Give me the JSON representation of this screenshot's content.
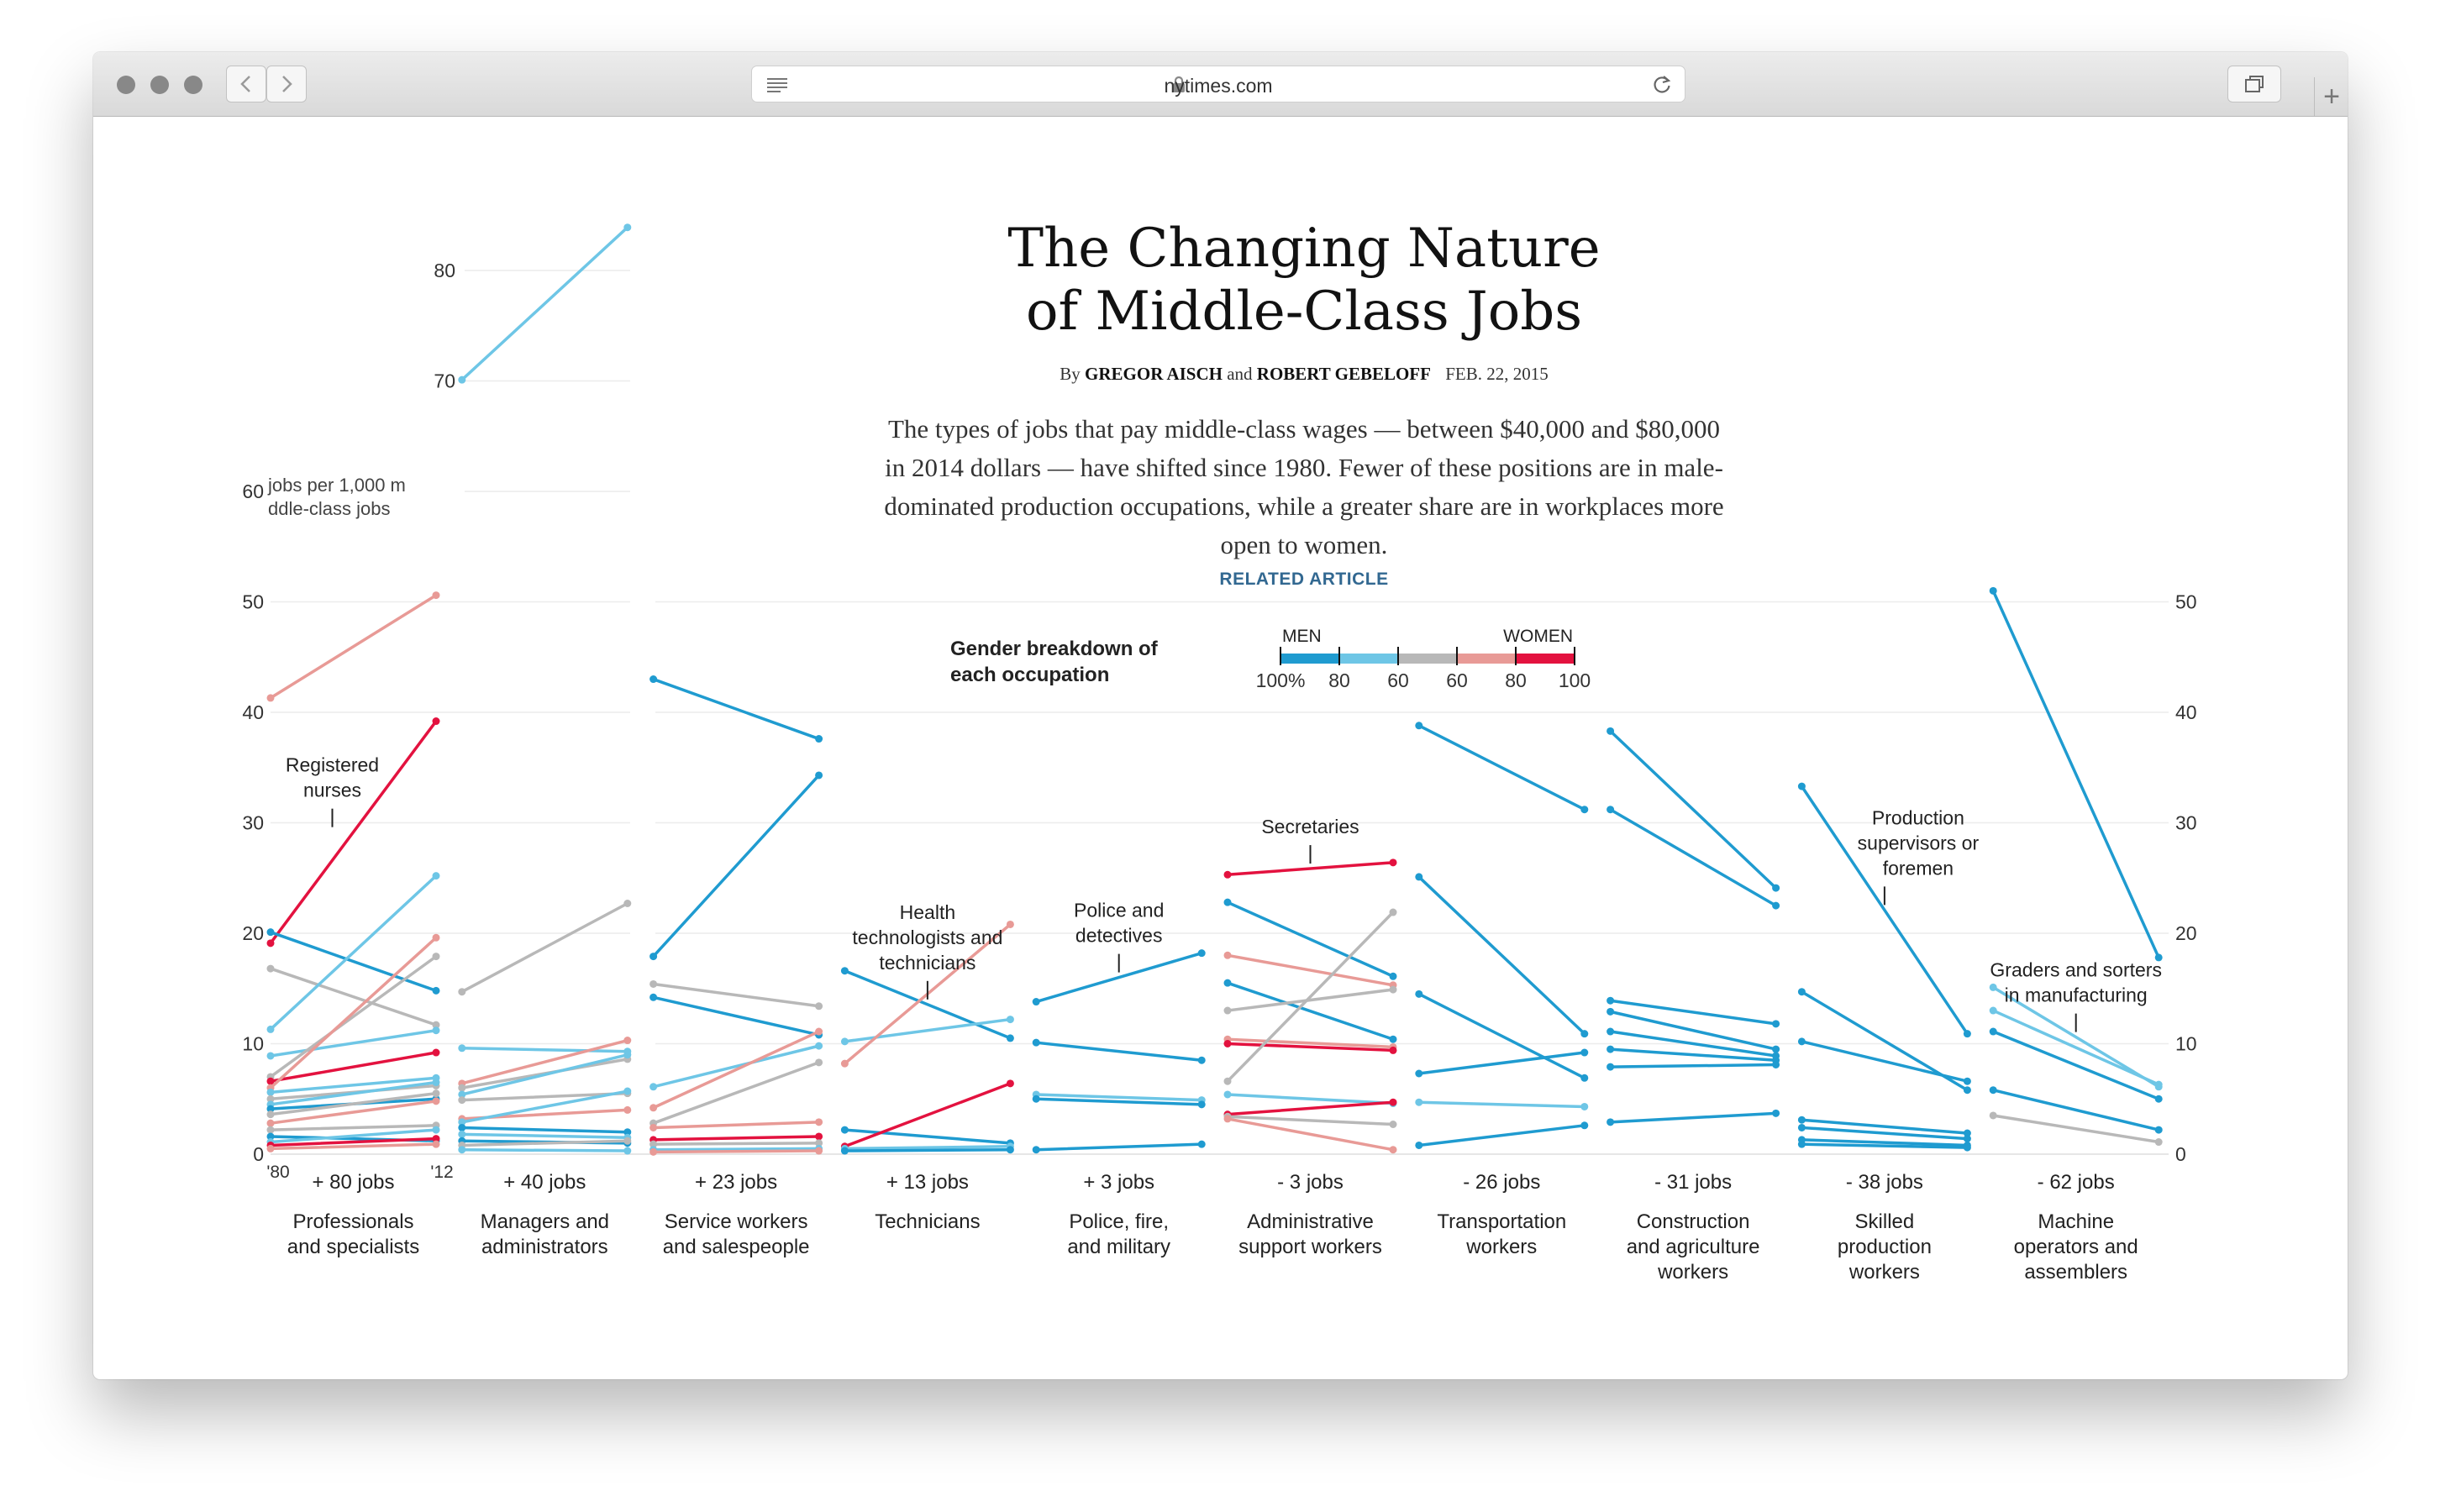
{
  "browser": {
    "url": "nytimes.com",
    "icons": [
      "close-dot-icon",
      "minimize-dot-icon",
      "zoom-dot-icon",
      "back-arrow-icon",
      "forward-arrow-icon",
      "reader-icon",
      "lock-icon",
      "reload-icon",
      "tabs-icon",
      "plus-icon"
    ]
  },
  "article": {
    "title_line1": "The Changing Nature",
    "title_line2": "of Middle-Class Jobs",
    "by": "By",
    "author1": "GREGOR AISCH",
    "and": "and",
    "author2": "ROBERT GEBELOFF",
    "date": "FEB. 22, 2015",
    "summary": "The types of jobs that pay middle-class wages — between $40,000 and $80,000 in 2014 dollars — have shifted since 1980. Fewer of these positions are in male-dominated production occupations, while a greater share are in workplaces more open to women.",
    "related": "RELATED ARTICLE"
  },
  "legend": {
    "title": "Gender breakdown of each occupation",
    "men_label": "MEN",
    "women_label": "WOMEN",
    "ticks": [
      "100%",
      "80",
      "60",
      "60",
      "80",
      "100"
    ],
    "colors": [
      "#1f9bd0",
      "#6ec6e6",
      "#b8b8b8",
      "#e89a96",
      "#e3123f"
    ]
  },
  "chart_data": {
    "type": "line",
    "x": [
      "'80",
      "'12"
    ],
    "y_unit_label": "jobs per 1,000 middle-class jobs",
    "left_ticks": [
      0,
      10,
      20,
      30,
      40,
      50,
      60,
      70,
      80
    ],
    "right_ticks": [
      0,
      10,
      20,
      30,
      40,
      50
    ],
    "ylim": [
      0,
      85
    ],
    "grid": true,
    "colors": {
      "men_high": "#1f9bd0",
      "men_mid": "#6ec6e6",
      "mixed": "#b8b8b8",
      "women_mid": "#e89a96",
      "women_high": "#e3123f"
    },
    "groups": [
      {
        "change": "+ 80 jobs",
        "label": [
          "Professionals",
          "and specialists"
        ],
        "lines": [
          {
            "v": [
              41.3,
              50.6
            ],
            "c": "women_mid"
          },
          {
            "v": [
              19.1,
              39.2
            ],
            "c": "women_high",
            "note": [
              "Registered",
              "nurses"
            ]
          },
          {
            "v": [
              20.1,
              14.8
            ],
            "c": "men_high"
          },
          {
            "v": [
              16.8,
              11.7
            ],
            "c": "mixed"
          },
          {
            "v": [
              11.3,
              25.2
            ],
            "c": "men_mid"
          },
          {
            "v": [
              8.9,
              11.2
            ],
            "c": "men_mid"
          },
          {
            "v": [
              7.0,
              17.9
            ],
            "c": "mixed"
          },
          {
            "v": [
              6.6,
              9.2
            ],
            "c": "women_high"
          },
          {
            "v": [
              6.0,
              19.6
            ],
            "c": "women_mid"
          },
          {
            "v": [
              5.6,
              6.9
            ],
            "c": "men_mid"
          },
          {
            "v": [
              5.0,
              6.2
            ],
            "c": "mixed"
          },
          {
            "v": [
              4.5,
              6.5
            ],
            "c": "men_mid"
          },
          {
            "v": [
              4.1,
              5.0
            ],
            "c": "men_high"
          },
          {
            "v": [
              3.6,
              5.5
            ],
            "c": "mixed"
          },
          {
            "v": [
              2.8,
              4.8
            ],
            "c": "women_mid"
          },
          {
            "v": [
              2.2,
              2.6
            ],
            "c": "mixed"
          },
          {
            "v": [
              1.6,
              1.2
            ],
            "c": "men_high"
          },
          {
            "v": [
              1.1,
              2.2
            ],
            "c": "men_mid"
          },
          {
            "v": [
              0.8,
              1.4
            ],
            "c": "women_high"
          },
          {
            "v": [
              0.5,
              0.9
            ],
            "c": "women_mid"
          }
        ]
      },
      {
        "change": "+ 40 jobs",
        "label": [
          "Managers and",
          "administrators"
        ],
        "lines": [
          {
            "v": [
              70.1,
              83.9
            ],
            "c": "men_mid"
          },
          {
            "v": [
              14.7,
              22.7
            ],
            "c": "mixed"
          },
          {
            "v": [
              9.6,
              9.3
            ],
            "c": "men_mid"
          },
          {
            "v": [
              6.4,
              10.3
            ],
            "c": "women_mid"
          },
          {
            "v": [
              6.0,
              8.6
            ],
            "c": "mixed"
          },
          {
            "v": [
              5.4,
              9.0
            ],
            "c": "men_mid"
          },
          {
            "v": [
              4.9,
              5.5
            ],
            "c": "mixed"
          },
          {
            "v": [
              3.2,
              4.0
            ],
            "c": "women_mid"
          },
          {
            "v": [
              2.9,
              5.7
            ],
            "c": "men_mid"
          },
          {
            "v": [
              2.4,
              2.0
            ],
            "c": "men_high"
          },
          {
            "v": [
              1.8,
              1.5
            ],
            "c": "men_mid"
          },
          {
            "v": [
              1.2,
              1.0
            ],
            "c": "men_high"
          },
          {
            "v": [
              0.8,
              1.2
            ],
            "c": "mixed"
          },
          {
            "v": [
              0.4,
              0.3
            ],
            "c": "men_mid"
          }
        ]
      },
      {
        "change": "+ 23 jobs",
        "label": [
          "Service workers",
          "and salespeople"
        ],
        "lines": [
          {
            "v": [
              43.0,
              37.6
            ],
            "c": "men_high"
          },
          {
            "v": [
              17.9,
              34.3
            ],
            "c": "men_high"
          },
          {
            "v": [
              15.4,
              13.4
            ],
            "c": "mixed"
          },
          {
            "v": [
              14.2,
              10.8
            ],
            "c": "men_high"
          },
          {
            "v": [
              6.1,
              9.8
            ],
            "c": "men_mid"
          },
          {
            "v": [
              4.2,
              11.1
            ],
            "c": "women_mid"
          },
          {
            "v": [
              2.8,
              8.3
            ],
            "c": "mixed"
          },
          {
            "v": [
              2.4,
              2.9
            ],
            "c": "women_mid"
          },
          {
            "v": [
              1.3,
              1.6
            ],
            "c": "women_high"
          },
          {
            "v": [
              0.9,
              1.0
            ],
            "c": "mixed"
          },
          {
            "v": [
              0.4,
              0.5
            ],
            "c": "men_mid"
          },
          {
            "v": [
              0.2,
              0.3
            ],
            "c": "women_mid"
          }
        ]
      },
      {
        "change": "+ 13 jobs",
        "label": [
          "Technicians"
        ],
        "lines": [
          {
            "v": [
              16.6,
              10.5
            ],
            "c": "men_high",
            "note": [
              "Health",
              "technologists and",
              "technicians"
            ]
          },
          {
            "v": [
              10.2,
              12.2
            ],
            "c": "men_mid"
          },
          {
            "v": [
              8.2,
              20.8
            ],
            "c": "women_mid"
          },
          {
            "v": [
              2.2,
              1.0
            ],
            "c": "men_high"
          },
          {
            "v": [
              0.7,
              6.4
            ],
            "c": "women_high"
          },
          {
            "v": [
              0.5,
              0.7
            ],
            "c": "men_mid"
          },
          {
            "v": [
              0.3,
              0.4
            ],
            "c": "men_high"
          }
        ]
      },
      {
        "change": "+ 3 jobs",
        "label": [
          "Police, fire,",
          "and military"
        ],
        "lines": [
          {
            "v": [
              13.8,
              18.2
            ],
            "c": "men_high",
            "note": [
              "Police and",
              "detectives"
            ]
          },
          {
            "v": [
              10.1,
              8.5
            ],
            "c": "men_high"
          },
          {
            "v": [
              5.4,
              4.9
            ],
            "c": "men_mid"
          },
          {
            "v": [
              5.0,
              4.5
            ],
            "c": "men_high"
          },
          {
            "v": [
              0.4,
              0.9
            ],
            "c": "men_high"
          }
        ]
      },
      {
        "change": "- 3 jobs",
        "label": [
          "Administrative",
          "support workers"
        ],
        "lines": [
          {
            "v": [
              25.3,
              26.4
            ],
            "c": "women_high",
            "note": [
              "Secretaries"
            ]
          },
          {
            "v": [
              22.8,
              16.1
            ],
            "c": "men_high"
          },
          {
            "v": [
              18.0,
              15.3
            ],
            "c": "women_mid"
          },
          {
            "v": [
              15.5,
              10.4
            ],
            "c": "men_high"
          },
          {
            "v": [
              13.0,
              14.9
            ],
            "c": "mixed"
          },
          {
            "v": [
              10.4,
              9.7
            ],
            "c": "women_mid"
          },
          {
            "v": [
              10.0,
              9.4
            ],
            "c": "women_high"
          },
          {
            "v": [
              6.6,
              21.9
            ],
            "c": "mixed"
          },
          {
            "v": [
              5.4,
              4.6
            ],
            "c": "men_mid"
          },
          {
            "v": [
              3.6,
              4.7
            ],
            "c": "women_high"
          },
          {
            "v": [
              3.4,
              2.7
            ],
            "c": "mixed"
          },
          {
            "v": [
              3.2,
              0.4
            ],
            "c": "women_mid"
          }
        ]
      },
      {
        "change": "- 26 jobs",
        "label": [
          "Transportation",
          "workers"
        ],
        "lines": [
          {
            "v": [
              38.8,
              31.2
            ],
            "c": "men_high"
          },
          {
            "v": [
              25.1,
              10.9
            ],
            "c": "men_high"
          },
          {
            "v": [
              14.5,
              6.9
            ],
            "c": "men_high"
          },
          {
            "v": [
              7.3,
              9.2
            ],
            "c": "men_high"
          },
          {
            "v": [
              4.7,
              4.3
            ],
            "c": "men_mid"
          },
          {
            "v": [
              0.8,
              2.6
            ],
            "c": "men_high"
          }
        ]
      },
      {
        "change": "- 31 jobs",
        "label": [
          "Construction",
          "and agriculture",
          "workers"
        ],
        "lines": [
          {
            "v": [
              38.3,
              24.1
            ],
            "c": "men_high"
          },
          {
            "v": [
              31.2,
              22.5
            ],
            "c": "men_high"
          },
          {
            "v": [
              13.9,
              11.8
            ],
            "c": "men_high"
          },
          {
            "v": [
              12.9,
              9.5
            ],
            "c": "men_high"
          },
          {
            "v": [
              11.1,
              8.9
            ],
            "c": "men_high"
          },
          {
            "v": [
              9.5,
              8.5
            ],
            "c": "men_high"
          },
          {
            "v": [
              7.9,
              8.1
            ],
            "c": "men_high"
          },
          {
            "v": [
              2.9,
              3.7
            ],
            "c": "men_high"
          }
        ]
      },
      {
        "change": "- 38 jobs",
        "label": [
          "Skilled",
          "production",
          "workers"
        ],
        "lines": [
          {
            "v": [
              33.3,
              10.9
            ],
            "c": "men_high",
            "note": [
              "Production",
              "supervisors or",
              "foremen"
            ]
          },
          {
            "v": [
              14.7,
              5.8
            ],
            "c": "men_high"
          },
          {
            "v": [
              10.2,
              6.6
            ],
            "c": "men_high"
          },
          {
            "v": [
              3.1,
              1.9
            ],
            "c": "men_high"
          },
          {
            "v": [
              2.4,
              1.4
            ],
            "c": "men_high"
          },
          {
            "v": [
              1.3,
              0.8
            ],
            "c": "men_high"
          },
          {
            "v": [
              0.9,
              0.6
            ],
            "c": "men_high"
          }
        ]
      },
      {
        "change": "- 62 jobs",
        "label": [
          "Machine",
          "operators and",
          "assemblers"
        ],
        "lines": [
          {
            "v": [
              51.0,
              17.8
            ],
            "c": "men_high"
          },
          {
            "v": [
              15.1,
              6.1
            ],
            "c": "men_mid",
            "note": [
              "Graders and sorters",
              "in manufacturing"
            ]
          },
          {
            "v": [
              13.0,
              6.3
            ],
            "c": "men_mid"
          },
          {
            "v": [
              11.1,
              5.0
            ],
            "c": "men_high"
          },
          {
            "v": [
              5.8,
              2.2
            ],
            "c": "men_high"
          },
          {
            "v": [
              3.5,
              1.1
            ],
            "c": "mixed"
          }
        ]
      }
    ]
  }
}
